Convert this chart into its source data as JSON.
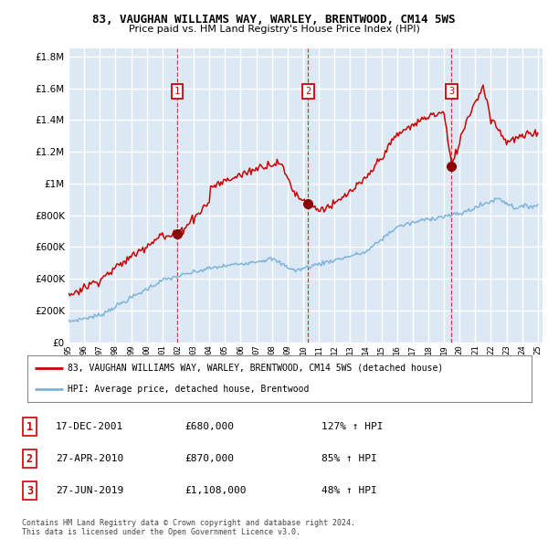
{
  "title": "83, VAUGHAN WILLIAMS WAY, WARLEY, BRENTWOOD, CM14 5WS",
  "subtitle": "Price paid vs. HM Land Registry's House Price Index (HPI)",
  "legend_line1": "83, VAUGHAN WILLIAMS WAY, WARLEY, BRENTWOOD, CM14 5WS (detached house)",
  "legend_line2": "HPI: Average price, detached house, Brentwood",
  "footnote": "Contains HM Land Registry data © Crown copyright and database right 2024.\nThis data is licensed under the Open Government Licence v3.0.",
  "sale_color": "#cc0000",
  "hpi_color": "#7fb3d9",
  "background_color": "#dce9f5",
  "ylim": [
    0,
    1850000
  ],
  "yticks": [
    0,
    200000,
    400000,
    600000,
    800000,
    1000000,
    1200000,
    1400000,
    1600000,
    1800000
  ],
  "sales": [
    {
      "date_num": 2001.96,
      "price": 680000,
      "label": "1"
    },
    {
      "date_num": 2010.32,
      "price": 870000,
      "label": "2"
    },
    {
      "date_num": 2019.48,
      "price": 1108000,
      "label": "3"
    }
  ],
  "sale_table": [
    {
      "num": "1",
      "date": "17-DEC-2001",
      "price": "£680,000",
      "hpi": "127% ↑ HPI"
    },
    {
      "num": "2",
      "date": "27-APR-2010",
      "price": "£870,000",
      "hpi": "85% ↑ HPI"
    },
    {
      "num": "3",
      "date": "27-JUN-2019",
      "price": "£1,108,000",
      "hpi": "48% ↑ HPI"
    }
  ]
}
